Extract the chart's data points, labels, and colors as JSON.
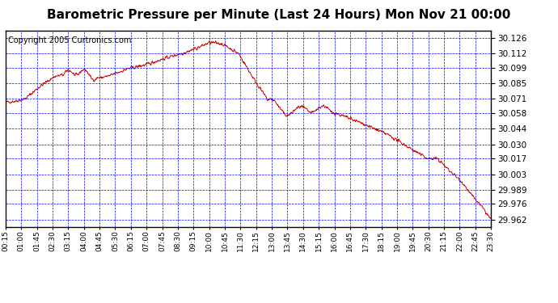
{
  "title": "Barometric Pressure per Minute (Last 24 Hours) Mon Nov 21 00:00",
  "copyright": "Copyright 2005 Curtronics.com",
  "yticks": [
    29.962,
    29.976,
    29.989,
    30.003,
    30.017,
    30.03,
    30.044,
    30.058,
    30.071,
    30.085,
    30.099,
    30.112,
    30.126
  ],
  "ylim": [
    29.955,
    30.133
  ],
  "xtick_labels": [
    "00:15",
    "01:00",
    "01:45",
    "02:30",
    "03:15",
    "04:00",
    "04:45",
    "05:30",
    "06:15",
    "07:00",
    "07:45",
    "08:30",
    "09:15",
    "10:00",
    "10:45",
    "11:30",
    "12:15",
    "13:00",
    "13:45",
    "14:30",
    "15:15",
    "16:00",
    "16:45",
    "17:30",
    "18:15",
    "19:00",
    "19:45",
    "20:30",
    "21:15",
    "22:00",
    "22:45",
    "23:30"
  ],
  "bg_color": "#ffffff",
  "plot_bg_color": "#ffffff",
  "line_color": "#cc0000",
  "grid_color": "#0000ff",
  "title_fontsize": 11,
  "copyright_fontsize": 7
}
